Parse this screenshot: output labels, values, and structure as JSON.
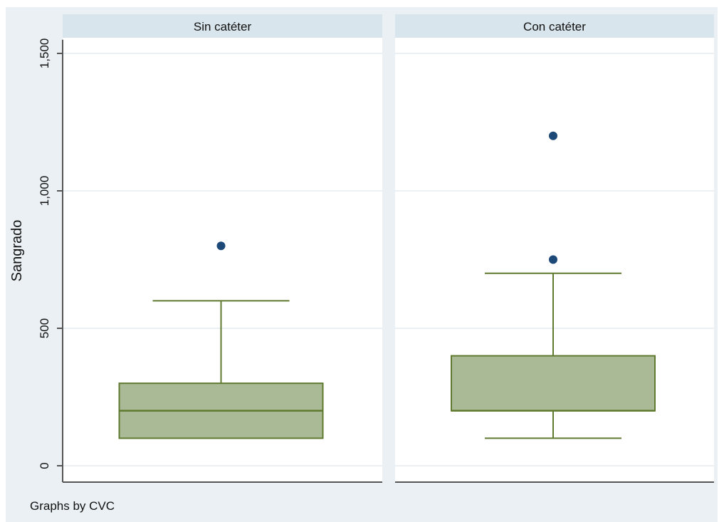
{
  "chart_data": {
    "type": "box",
    "ylabel": "Sangrado",
    "ylim": [
      0,
      1550
    ],
    "yticks": [
      {
        "value": 0,
        "label": "0"
      },
      {
        "value": 500,
        "label": "500"
      },
      {
        "value": 1000,
        "label": "1,000"
      },
      {
        "value": 1500,
        "label": "1,500"
      }
    ],
    "grid": true,
    "note": "Graphs by CVC",
    "panels": [
      {
        "title": "Sin catéter",
        "box": {
          "whisker_low": 100,
          "q1": 100,
          "median": 200,
          "q3": 300,
          "whisker_high": 600
        },
        "outliers": [
          800
        ]
      },
      {
        "title": "Con catéter",
        "box": {
          "whisker_low": 100,
          "q1": 200,
          "median": 200,
          "q3": 400,
          "whisker_high": 700
        },
        "outliers": [
          750,
          1200
        ]
      }
    ],
    "colors": {
      "outer_bg": "#eaf0f3",
      "plot_bg": "#ffffff",
      "header_bg": "#d9e5ec",
      "box_fill": "#aab996",
      "box_line": "#5f7a2f",
      "outlier": "#1d4978",
      "grid": "#e4ecef",
      "axis": "#555555"
    }
  }
}
